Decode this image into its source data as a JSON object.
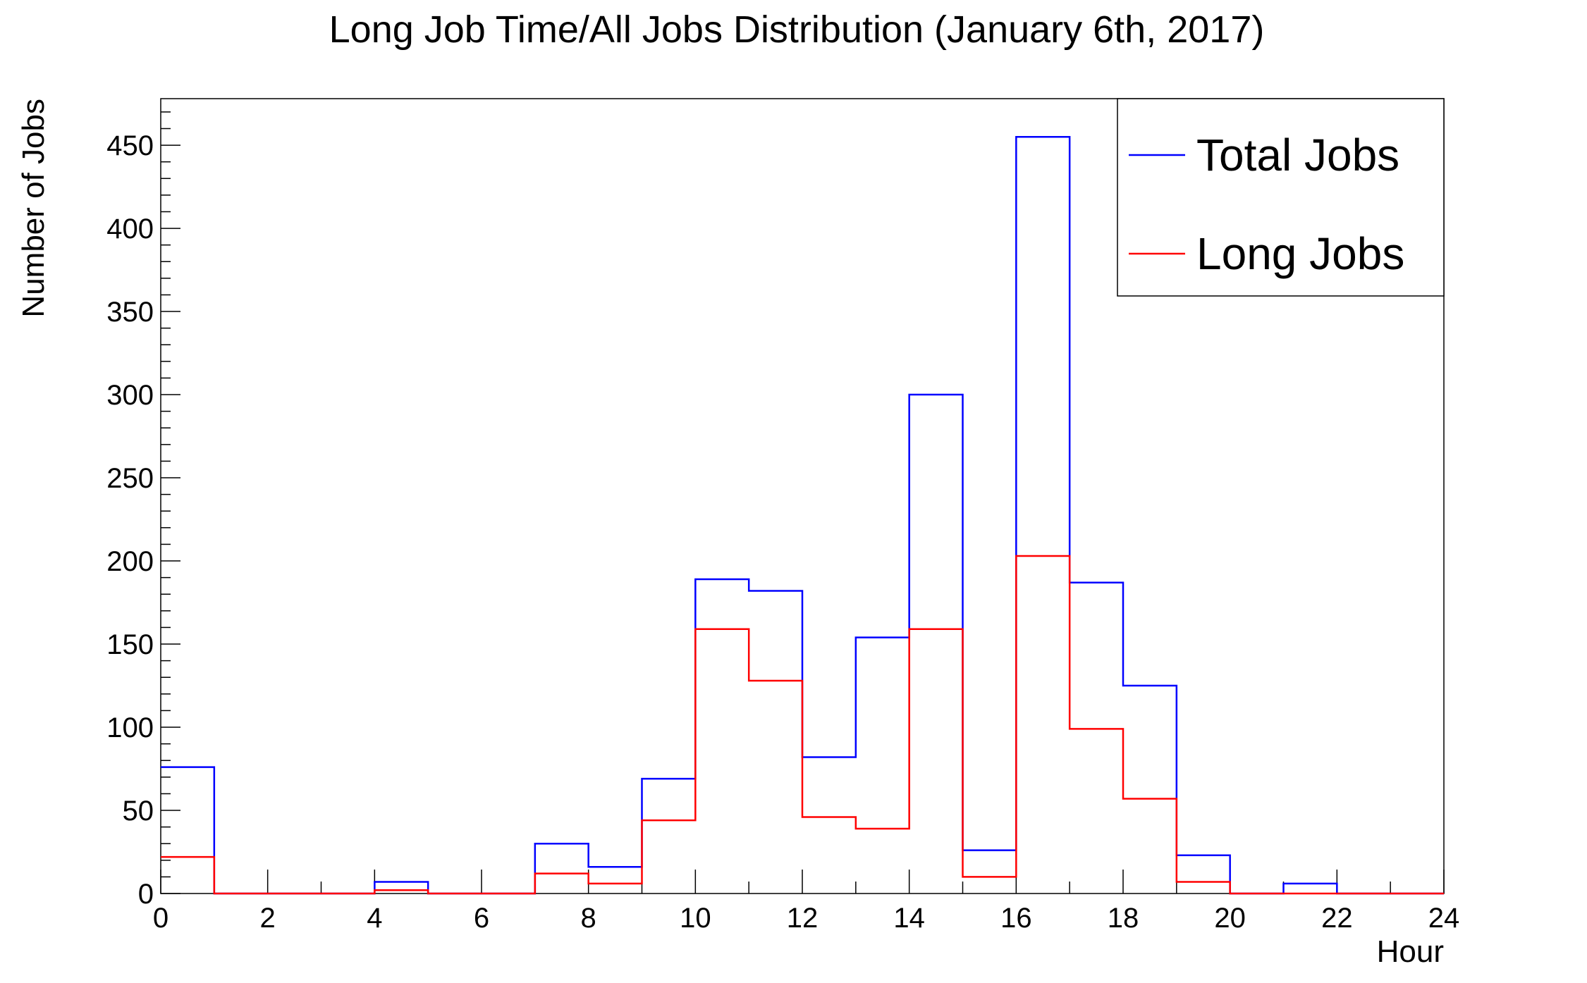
{
  "chart_data": {
    "type": "histogram",
    "title": "Long Job Time/All Jobs Distribution (January 6th, 2017)",
    "xlabel": "Hour",
    "ylabel": "Number of Jobs",
    "xlim": [
      0,
      24
    ],
    "ylim": [
      0,
      478
    ],
    "x_ticks": [
      "0",
      "2",
      "4",
      "6",
      "8",
      "10",
      "12",
      "14",
      "16",
      "18",
      "20",
      "22",
      "24"
    ],
    "y_ticks": [
      "0",
      "50",
      "100",
      "150",
      "200",
      "250",
      "300",
      "350",
      "400",
      "450"
    ],
    "bin_edges": [
      0,
      1,
      2,
      3,
      4,
      5,
      6,
      7,
      8,
      9,
      10,
      11,
      12,
      13,
      14,
      15,
      16,
      17,
      18,
      19,
      20,
      21,
      22,
      23,
      24
    ],
    "legend_position": "top-right",
    "series": [
      {
        "name": "Total Jobs",
        "color": "#0000ff",
        "values": [
          76,
          0,
          0,
          0,
          7,
          0,
          0,
          30,
          16,
          69,
          189,
          182,
          82,
          154,
          300,
          26,
          455,
          187,
          125,
          23,
          0,
          6,
          0,
          0
        ]
      },
      {
        "name": "Long Jobs",
        "color": "#ff0000",
        "values": [
          22,
          0,
          0,
          0,
          2,
          0,
          0,
          12,
          6,
          44,
          159,
          128,
          46,
          39,
          159,
          10,
          203,
          99,
          57,
          7,
          0,
          0,
          0,
          0
        ]
      }
    ]
  }
}
